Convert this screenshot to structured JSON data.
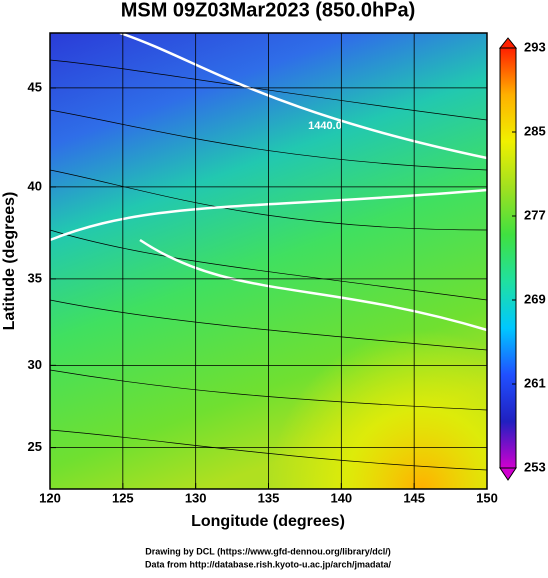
{
  "chart_data": {
    "type": "map",
    "projection": "mercator",
    "title": "MSM 09Z03Mar2023 (850.0hPa)",
    "x_label": "Longitude (degrees)",
    "y_label": "Latitude  (degrees)",
    "xlim": [
      120,
      150
    ],
    "ylim": [
      22.4,
      47.6
    ],
    "xticks": [
      120,
      125,
      130,
      135,
      140,
      145,
      150
    ],
    "yticks": [
      25,
      30,
      35,
      40,
      45
    ],
    "grid": true,
    "contour_labels": [
      "1440.0"
    ],
    "colorbar": {
      "range": [
        253,
        293
      ],
      "ticks": [
        253,
        261,
        269,
        277,
        285,
        293
      ],
      "colors": [
        "#d000d0",
        "#2020c0",
        "#2050ff",
        "#00c8ff",
        "#20e0a0",
        "#40e040",
        "#a0e020",
        "#f0f000",
        "#ffb000",
        "#ff2000"
      ]
    },
    "footer": [
      "Drawing by DCL (https://www.gfd-dennou.org/library/dcl/)",
      "Data from http://database.rish.kyoto-u.ac.jp/arch/jmadata/"
    ]
  }
}
